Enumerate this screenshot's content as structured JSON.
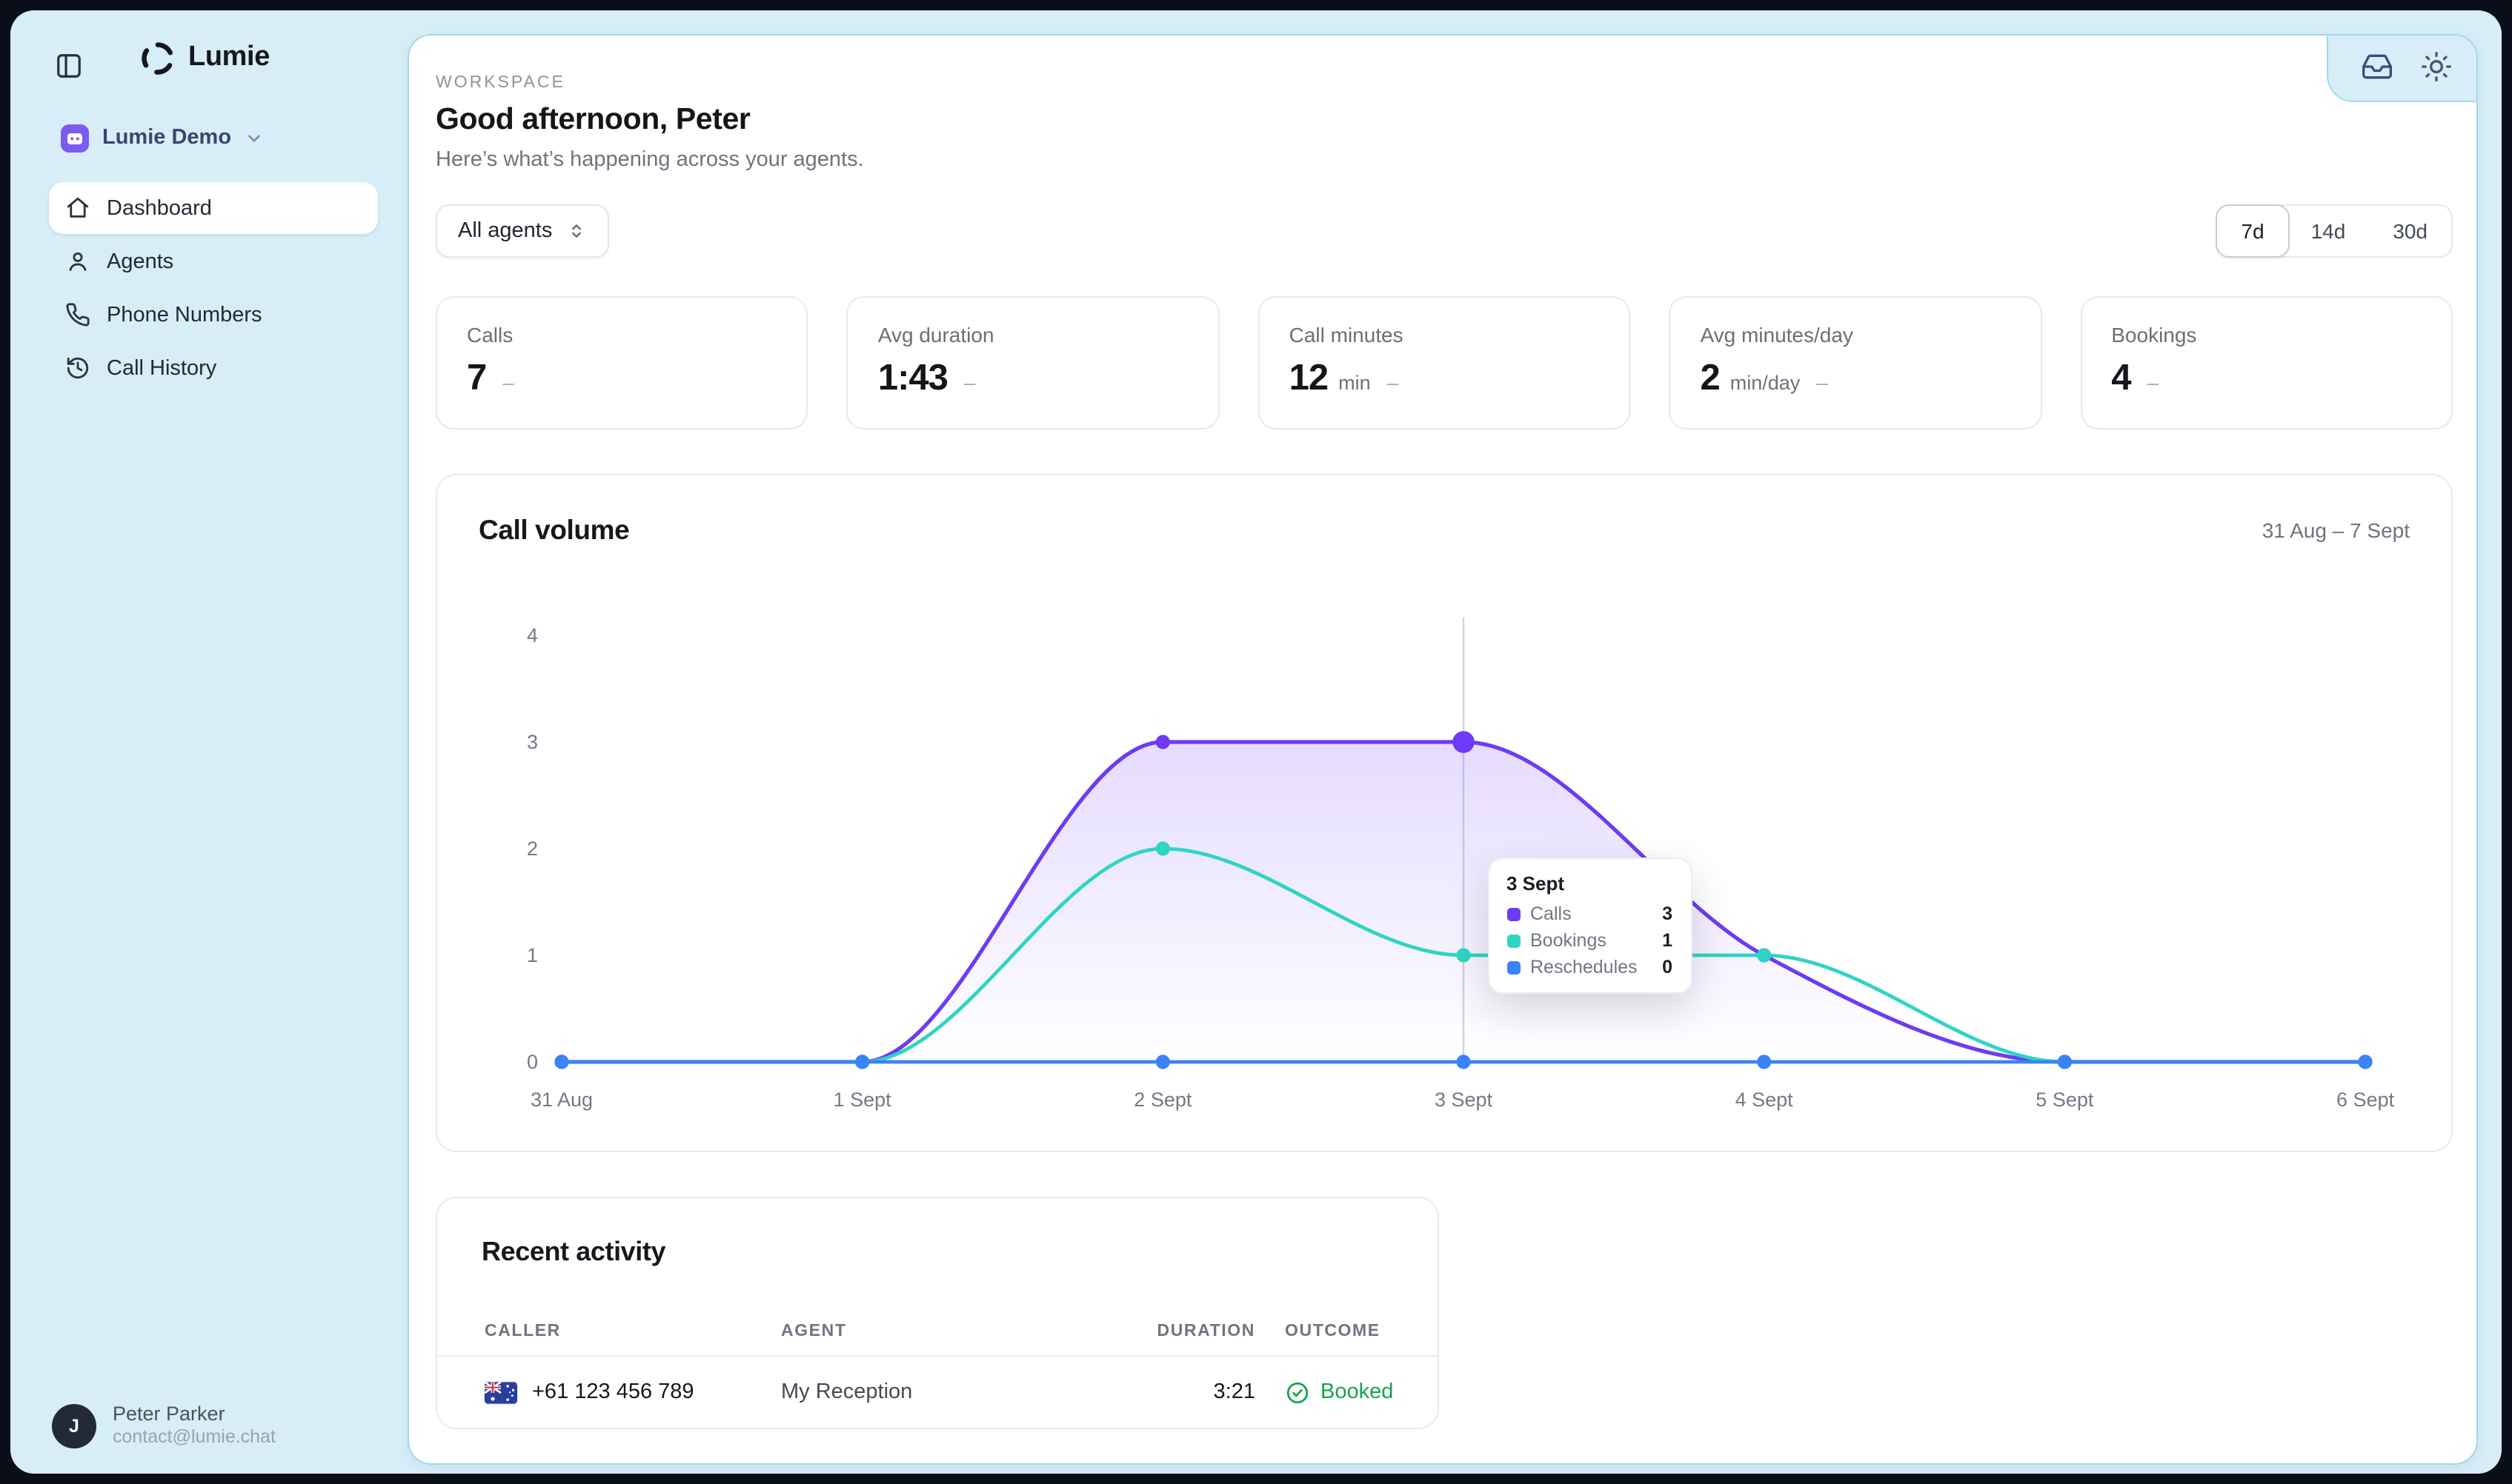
{
  "sidebar": {
    "logo_text": "Lumie",
    "toggle_icon": "sidebar-panel-icon",
    "workspace": {
      "name": "Lumie Demo",
      "avatar_color": "#7c5cf0"
    },
    "items": [
      {
        "label": "Dashboard",
        "icon": "home-icon",
        "active": true
      },
      {
        "label": "Agents",
        "icon": "user-icon",
        "active": false
      },
      {
        "label": "Phone Numbers",
        "icon": "phone-icon",
        "active": false
      },
      {
        "label": "Call History",
        "icon": "history-icon",
        "active": false
      }
    ],
    "user": {
      "initial": "J",
      "name": "Peter Parker",
      "email": "contact@lumie.chat"
    }
  },
  "topbar": {
    "icons": [
      "inbox-icon",
      "sun-icon"
    ]
  },
  "header": {
    "eyebrow": "WORKSPACE",
    "title": "Good afternoon, Peter",
    "subtitle": "Here’s what’s happening across your agents."
  },
  "controls": {
    "agent_filter_label": "All agents",
    "ranges": [
      "7d",
      "14d",
      "30d"
    ],
    "active_range": "7d"
  },
  "stats": [
    {
      "label": "Calls",
      "value": "7",
      "unit": "",
      "trend": "–"
    },
    {
      "label": "Avg duration",
      "value": "1:43",
      "unit": "",
      "trend": "–"
    },
    {
      "label": "Call minutes",
      "value": "12",
      "unit": "min",
      "trend": "–"
    },
    {
      "label": "Avg minutes/day",
      "value": "2",
      "unit": "min/day",
      "trend": "–"
    },
    {
      "label": "Bookings",
      "value": "4",
      "unit": "",
      "trend": "–"
    }
  ],
  "chart_card": {
    "title": "Call volume",
    "date_range": "31 Aug – 7 Sept"
  },
  "chart_data": {
    "type": "line",
    "x": [
      "31 Aug",
      "1 Sept",
      "2 Sept",
      "3 Sept",
      "4 Sept",
      "5 Sept",
      "6 Sept"
    ],
    "series": [
      {
        "name": "Calls",
        "color": "#6d3bf5",
        "values": [
          0,
          0,
          3,
          3,
          1,
          0,
          0
        ],
        "area": true
      },
      {
        "name": "Bookings",
        "color": "#2fd4c3",
        "values": [
          0,
          0,
          2,
          1,
          1,
          0,
          0
        ],
        "area": false
      },
      {
        "name": "Reschedules",
        "color": "#3b82f6",
        "values": [
          0,
          0,
          0,
          0,
          0,
          0,
          0
        ],
        "area": false
      }
    ],
    "ylim": [
      0,
      4
    ],
    "yticks": [
      0,
      1,
      2,
      3,
      4
    ],
    "grid": false,
    "legend_position": "tooltip",
    "hover_index": 3,
    "tooltip": {
      "title": "3 Sept",
      "rows": [
        {
          "label": "Calls",
          "value": "3",
          "color": "#6d3bf5"
        },
        {
          "label": "Bookings",
          "value": "1",
          "color": "#2fd4c3"
        },
        {
          "label": "Reschedules",
          "value": "0",
          "color": "#3b82f6"
        }
      ]
    }
  },
  "activity": {
    "title": "Recent activity",
    "columns": [
      "CALLER",
      "AGENT",
      "DURATION",
      "OUTCOME"
    ],
    "rows": [
      {
        "flag": "australia-flag",
        "caller": "+61 123 456 789",
        "agent": "My Reception",
        "duration": "3:21",
        "outcome": "Booked"
      }
    ]
  }
}
